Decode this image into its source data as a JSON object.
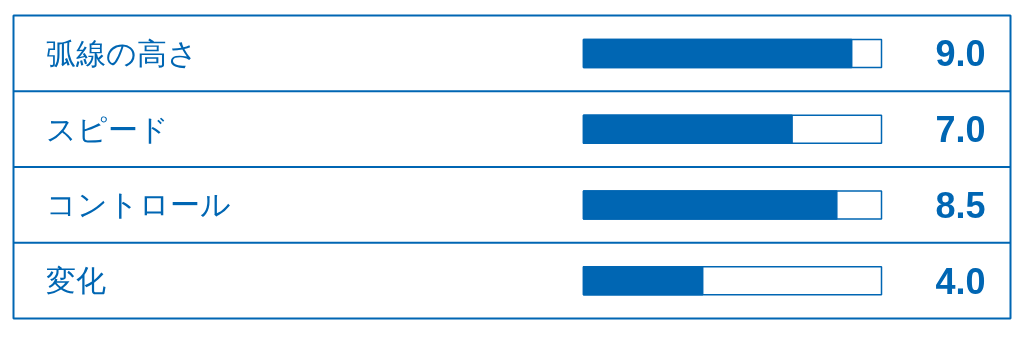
{
  "chart_data": {
    "type": "bar",
    "orientation": "horizontal",
    "categories": [
      "弧線の高さ",
      "スピード",
      "コントロール",
      "変化"
    ],
    "values": [
      9.0,
      7.0,
      8.5,
      4.0
    ],
    "value_labels": [
      "9.0",
      "7.0",
      "8.5",
      "4.0"
    ],
    "color": "#0066b3",
    "xlim": [
      0,
      10
    ],
    "tick_labels": false
  }
}
